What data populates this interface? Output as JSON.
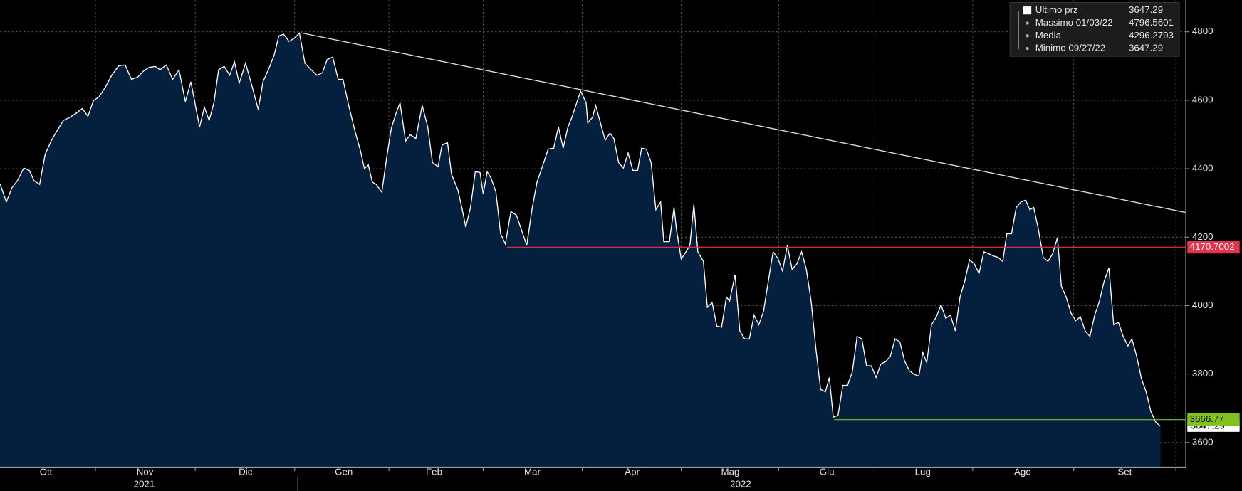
{
  "chart_data": {
    "type": "area",
    "ylim": [
      3528,
      4892.5
    ],
    "yticks": [
      3600,
      3800,
      4000,
      4200,
      4400,
      4600,
      4800
    ],
    "xlim": [
      0,
      1497
    ],
    "xticks": [
      {
        "value": 58,
        "label": "Ott"
      },
      {
        "value": 183,
        "label": "Nov"
      },
      {
        "value": 310,
        "label": "Dic"
      },
      {
        "value": 434,
        "label": "Gen"
      },
      {
        "value": 548,
        "label": "Feb"
      },
      {
        "value": 672,
        "label": "Mar"
      },
      {
        "value": 798,
        "label": "Apr"
      },
      {
        "value": 922,
        "label": "Mag"
      },
      {
        "value": 1044,
        "label": "Giu"
      },
      {
        "value": 1165,
        "label": "Lug"
      },
      {
        "value": 1291,
        "label": "Ago"
      },
      {
        "value": 1420,
        "label": "Set"
      }
    ],
    "year_ticks": [
      {
        "value": 182,
        "label": "2021"
      },
      {
        "value": 935,
        "label": "2022"
      }
    ],
    "year_boundary": 376,
    "grid": true,
    "series": [
      {
        "name": "Ultimo prz",
        "color": "#ffffff",
        "fill": "#05203f",
        "x": [
          0,
          8,
          15,
          22,
          30,
          37,
          43,
          50,
          57,
          65,
          72,
          80,
          88,
          96,
          104,
          111,
          118,
          125,
          133,
          141,
          150,
          158,
          166,
          174,
          181,
          188,
          196,
          202,
          210,
          218,
          226,
          234,
          241,
          248,
          252,
          258,
          264,
          270,
          276,
          283,
          290,
          296,
          302,
          310,
          318,
          326,
          332,
          340,
          346,
          352,
          358,
          365,
          372,
          378,
          385,
          392,
          400,
          407,
          413,
          420,
          427,
          433,
          440,
          448,
          455,
          460,
          465,
          470,
          475,
          482,
          488,
          494,
          500,
          505,
          512,
          518,
          525,
          533,
          540,
          546,
          553,
          558,
          565,
          570,
          578,
          583,
          588,
          594,
          600,
          606,
          610,
          615,
          620,
          626,
          632,
          638,
          645,
          652,
          660,
          665,
          672,
          678,
          685,
          692,
          699,
          705,
          711,
          717,
          722,
          728,
          733,
          740,
          742,
          748,
          752,
          758,
          764,
          770,
          775,
          781,
          787,
          793,
          799,
          805,
          810,
          816,
          822,
          828,
          834,
          838,
          845,
          851,
          854,
          860,
          866,
          871,
          876,
          881,
          888,
          893,
          899,
          905,
          911,
          917,
          921,
          928,
          934,
          940,
          946,
          952,
          958,
          964,
          970,
          976,
          982,
          988,
          994,
          1000,
          1006,
          1012,
          1018,
          1024,
          1030,
          1036,
          1042,
          1047,
          1052,
          1058,
          1064,
          1070,
          1076,
          1082,
          1088,
          1094,
          1100,
          1106,
          1112,
          1118,
          1124,
          1130,
          1136,
          1142,
          1148,
          1154,
          1160,
          1165,
          1170,
          1176,
          1182,
          1188,
          1194,
          1200,
          1206,
          1212,
          1218,
          1224,
          1230,
          1236,
          1242,
          1248,
          1254,
          1260,
          1266,
          1271,
          1277,
          1283,
          1289,
          1295,
          1300,
          1305,
          1311,
          1317,
          1323,
          1329,
          1335,
          1340,
          1346,
          1352,
          1358,
          1364,
          1370,
          1376,
          1382,
          1388,
          1394,
          1400,
          1406,
          1412,
          1418,
          1424,
          1429,
          1435,
          1441,
          1447,
          1453,
          1459,
          1465
        ],
        "values": [
          4356,
          4303,
          4344,
          4365,
          4402,
          4395,
          4365,
          4354,
          4442,
          4483,
          4511,
          4541,
          4550,
          4562,
          4576,
          4553,
          4599,
          4610,
          4638,
          4673,
          4701,
          4703,
          4661,
          4668,
          4685,
          4696,
          4699,
          4689,
          4703,
          4661,
          4689,
          4596,
          4654,
          4569,
          4522,
          4580,
          4541,
          4592,
          4689,
          4699,
          4673,
          4712,
          4650,
          4708,
          4643,
          4573,
          4654,
          4696,
          4731,
          4788,
          4793,
          4772,
          4782,
          4796.5601,
          4708,
          4691,
          4673,
          4680,
          4719,
          4726,
          4661,
          4661,
          4587,
          4511,
          4453,
          4400,
          4411,
          4361,
          4354,
          4331,
          4430,
          4518,
          4562,
          4592,
          4481,
          4499,
          4488,
          4585,
          4522,
          4418,
          4406,
          4469,
          4476,
          4384,
          4338,
          4287,
          4229,
          4287,
          4391,
          4389,
          4326,
          4391,
          4372,
          4333,
          4210,
          4180,
          4275,
          4264,
          4210,
          4176,
          4287,
          4361,
          4408,
          4457,
          4460,
          4522,
          4460,
          4522,
          4550,
          4592,
          4627,
          4592,
          4534,
          4550,
          4585,
          4534,
          4483,
          4504,
          4488,
          4418,
          4402,
          4446,
          4395,
          4395,
          4460,
          4457,
          4418,
          4280,
          4303,
          4187,
          4187,
          4287,
          4222,
          4136,
          4157,
          4176,
          4296,
          4157,
          4129,
          3995,
          4009,
          3940,
          3937,
          4025,
          4013,
          4090,
          3926,
          3903,
          3903,
          3972,
          3944,
          3984,
          4072,
          4157,
          4138,
          4101,
          4176,
          4106,
          4122,
          4157,
          4106,
          4013,
          3875,
          3755,
          3748,
          3790,
          3674,
          3679,
          3767,
          3767,
          3806,
          3910,
          3903,
          3824,
          3824,
          3790,
          3829,
          3836,
          3852,
          3903,
          3894,
          3838,
          3810,
          3799,
          3794,
          3863,
          3833,
          3944,
          3967,
          4002,
          3963,
          3972,
          3926,
          4025,
          4072,
          4134,
          4122,
          4094,
          4157,
          4152,
          4145,
          4141,
          4129,
          4210,
          4210,
          4287,
          4303,
          4308,
          4280,
          4287,
          4222,
          4141,
          4129,
          4152,
          4199,
          4055,
          4025,
          3979,
          3956,
          3967,
          3926,
          3910,
          3972,
          4013,
          4072,
          4110,
          3944,
          3951,
          3910,
          3882,
          3903,
          3852,
          3787,
          3748,
          3690,
          3660,
          3647.29
        ]
      }
    ],
    "trendline": {
      "color": "#e0e0e0",
      "x": [
        380,
        1497
      ],
      "values": [
        4797,
        4272
      ]
    },
    "levels": [
      {
        "value": 4170.7002,
        "x_start": 640,
        "color": "#e8334a",
        "text_color": "#ffffff"
      },
      {
        "value": 3666.77,
        "x_start": 1053,
        "color": "#7fc31c",
        "text_color": "#000000"
      }
    ],
    "last_price": 3647.29,
    "legend": [
      {
        "name": "Ultimo prz",
        "value": 3647.29
      },
      {
        "name": "Massimo 01/03/22",
        "value": 4796.5601
      },
      {
        "name": "Media",
        "value": 4296.2793
      },
      {
        "name": "Minimo 09/27/22",
        "value": 3647.29
      }
    ]
  }
}
